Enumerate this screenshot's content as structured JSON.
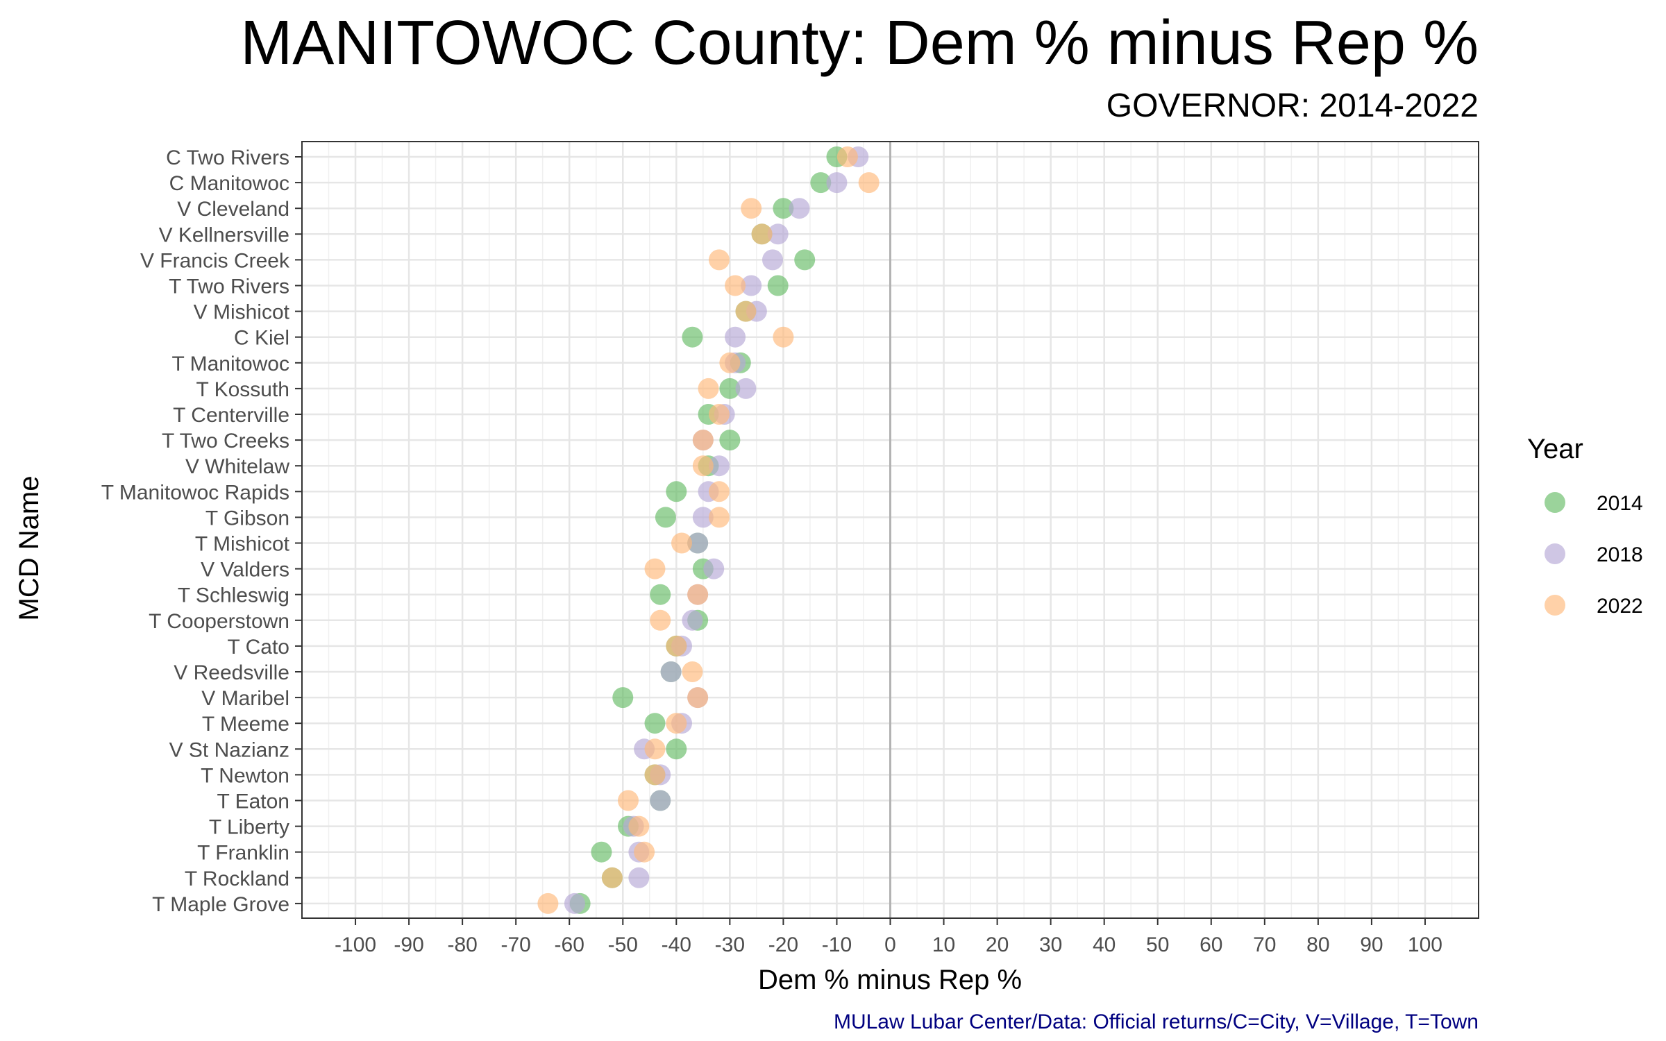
{
  "chart_data": {
    "type": "scatter",
    "title": "MANITOWOC County: Dem % minus Rep %",
    "subtitle": "GOVERNOR: 2014-2022",
    "xlabel": "Dem % minus Rep %",
    "ylabel": "MCD Name",
    "caption": "MULaw Lubar Center/Data: Official returns/C=City, V=Village, T=Town",
    "xlim": [
      -110,
      110
    ],
    "xticks": [
      -100,
      -90,
      -80,
      -70,
      -60,
      -50,
      -40,
      -30,
      -20,
      -10,
      0,
      10,
      20,
      30,
      40,
      50,
      60,
      70,
      80,
      90,
      100
    ],
    "grid": true,
    "reference_line_x": 0,
    "legend": {
      "title": "Year",
      "position": "right"
    },
    "categories": [
      "C Two Rivers",
      "C Manitowoc",
      "V Cleveland",
      "V Kellnersville",
      "V Francis Creek",
      "T Two Rivers",
      "V Mishicot",
      "C Kiel",
      "T Manitowoc",
      "T Kossuth",
      "T Centerville",
      "T Two Creeks",
      "V Whitelaw",
      "T Manitowoc Rapids",
      "T Gibson",
      "T Mishicot",
      "V Valders",
      "T Schleswig",
      "T Cooperstown",
      "T Cato",
      "V Reedsville",
      "V Maribel",
      "T Meeme",
      "V St Nazianz",
      "T Newton",
      "T Eaton",
      "T Liberty",
      "T Franklin",
      "T Rockland",
      "T Maple Grove"
    ],
    "series": [
      {
        "name": "2014",
        "color": "#66BB66",
        "values": [
          -10,
          -13,
          -20,
          -24,
          -16,
          -21,
          -27,
          -37,
          -28,
          -30,
          -34,
          -30,
          -34,
          -40,
          -42,
          -36,
          -35,
          -43,
          -36,
          -40,
          -41,
          -50,
          -44,
          -40,
          -44,
          -43,
          -49,
          -54,
          -52,
          -58
        ]
      },
      {
        "name": "2018",
        "color": "#B5A8D6",
        "values": [
          -6,
          -10,
          -17,
          -21,
          -22,
          -26,
          -25,
          -29,
          -29,
          -27,
          -31,
          -35,
          -32,
          -34,
          -35,
          -36,
          -33,
          -36,
          -37,
          -39,
          -41,
          -36,
          -39,
          -46,
          -43,
          -43,
          -48,
          -47,
          -47,
          -59
        ]
      },
      {
        "name": "2022",
        "color": "#FFB87A",
        "values": [
          -8,
          -4,
          -26,
          -24,
          -32,
          -29,
          -27,
          -20,
          -30,
          -34,
          -32,
          -35,
          -35,
          -32,
          -32,
          -39,
          -44,
          -36,
          -43,
          -40,
          -37,
          -36,
          -40,
          -44,
          -44,
          -49,
          -47,
          -46,
          -52,
          -64
        ]
      }
    ]
  }
}
